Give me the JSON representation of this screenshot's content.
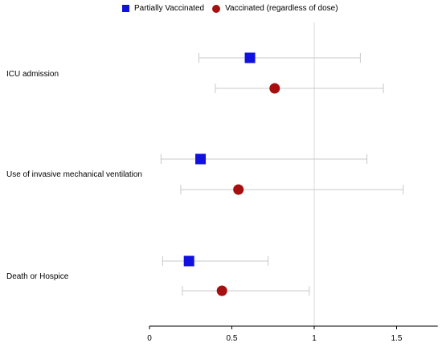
{
  "chart_data": {
    "type": "scatter",
    "subtype": "forest-plot",
    "title": "",
    "xlabel": "",
    "ylabel": "",
    "xlim": [
      0,
      1.75
    ],
    "x_ticks": [
      0,
      0.5,
      1,
      1.5
    ],
    "x_tick_labels": [
      "0",
      "0.5",
      "1",
      "1.5"
    ],
    "reference_line": 1,
    "grid": false,
    "legend_position": "top",
    "categories": [
      "ICU admission",
      "Use of invasive mechanical ventilation",
      "Death or Hospice"
    ],
    "series": [
      {
        "name": "Partially Vaccinated",
        "marker": "square",
        "color": "#1010e0",
        "points": [
          {
            "category": "ICU admission",
            "estimate": 0.61,
            "lower": 0.3,
            "upper": 1.28
          },
          {
            "category": "Use of invasive mechanical ventilation",
            "estimate": 0.31,
            "lower": 0.07,
            "upper": 1.32
          },
          {
            "category": "Death or Hospice",
            "estimate": 0.24,
            "lower": 0.08,
            "upper": 0.72
          }
        ]
      },
      {
        "name": "Vaccinated (regardless of dose)",
        "marker": "circle",
        "color": "#a50f0f",
        "points": [
          {
            "category": "ICU admission",
            "estimate": 0.76,
            "lower": 0.4,
            "upper": 1.42
          },
          {
            "category": "Use of invasive mechanical ventilation",
            "estimate": 0.54,
            "lower": 0.19,
            "upper": 1.54
          },
          {
            "category": "Death or Hospice",
            "estimate": 0.44,
            "lower": 0.2,
            "upper": 0.97
          }
        ]
      }
    ]
  }
}
